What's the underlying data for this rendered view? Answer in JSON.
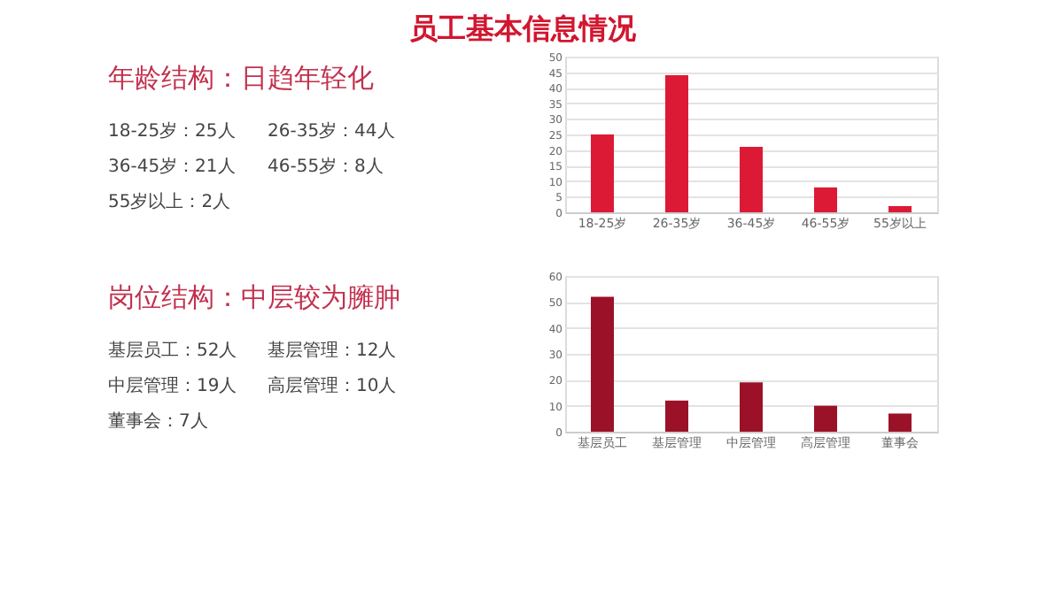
{
  "chart_data": [
    {
      "type": "bar",
      "title": "员工基本信息情况",
      "annotations": [
        "年龄结构：日趋年轻化",
        "18-25岁：25人",
        "26-35岁：44人",
        "36-45岁：21人",
        "46-55岁：8人",
        "55岁以上：2人"
      ],
      "categories": [
        "18-25岁",
        "26-35岁",
        "36-45岁",
        "46-55岁",
        "55岁以上"
      ],
      "values": [
        25,
        44,
        21,
        8,
        2
      ],
      "color": "#dc1a36",
      "ylim": [
        0,
        50
      ],
      "yticks": [
        0,
        5,
        10,
        15,
        20,
        25,
        30,
        35,
        40,
        45,
        50
      ],
      "grid": "y"
    },
    {
      "type": "bar",
      "annotations": [
        "岗位结构：中层较为臃肿",
        "基层员工：52人",
        "基层管理：12人",
        "中层管理：19人",
        "高层管理：10人",
        "董事会：7人"
      ],
      "categories": [
        "基层员工",
        "基层管理",
        "中层管理",
        "高层管理",
        "董事会"
      ],
      "values": [
        52,
        12,
        19,
        10,
        7
      ],
      "color": "#9b1228",
      "ylim": [
        0,
        60
      ],
      "yticks": [
        0,
        10,
        20,
        30,
        40,
        50,
        60
      ],
      "grid": "y"
    }
  ]
}
